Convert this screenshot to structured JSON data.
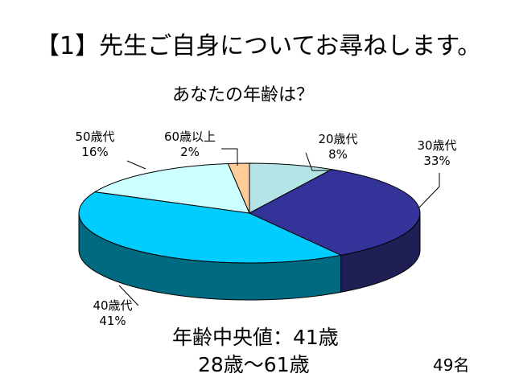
{
  "slide": {
    "title": "【1】先生ご自身についてお尋ねします。",
    "median_text": "年齢中央値：41歳",
    "range_text": "28歳～61歳",
    "respondents": "49名"
  },
  "chart_data": {
    "type": "pie",
    "title": "あなたの年齢は？",
    "categories": [
      "20歳代",
      "30歳代",
      "40歳代",
      "50歳代",
      "60歳以上"
    ],
    "values": [
      8,
      33,
      41,
      16,
      2
    ],
    "value_labels": [
      "8%",
      "33%",
      "41%",
      "16%",
      "2%"
    ],
    "unit": "%",
    "three_d": true,
    "legend": "none",
    "colors": {
      "top": [
        "#b4e4e6",
        "#333399",
        "#00ccff",
        "#ccffff",
        "#ffcc99"
      ],
      "side": [
        "#82b3b5",
        "#1f1f55",
        "#006b80",
        "#8cc4c4",
        "#c89a6a"
      ],
      "outline": "#000000"
    }
  }
}
